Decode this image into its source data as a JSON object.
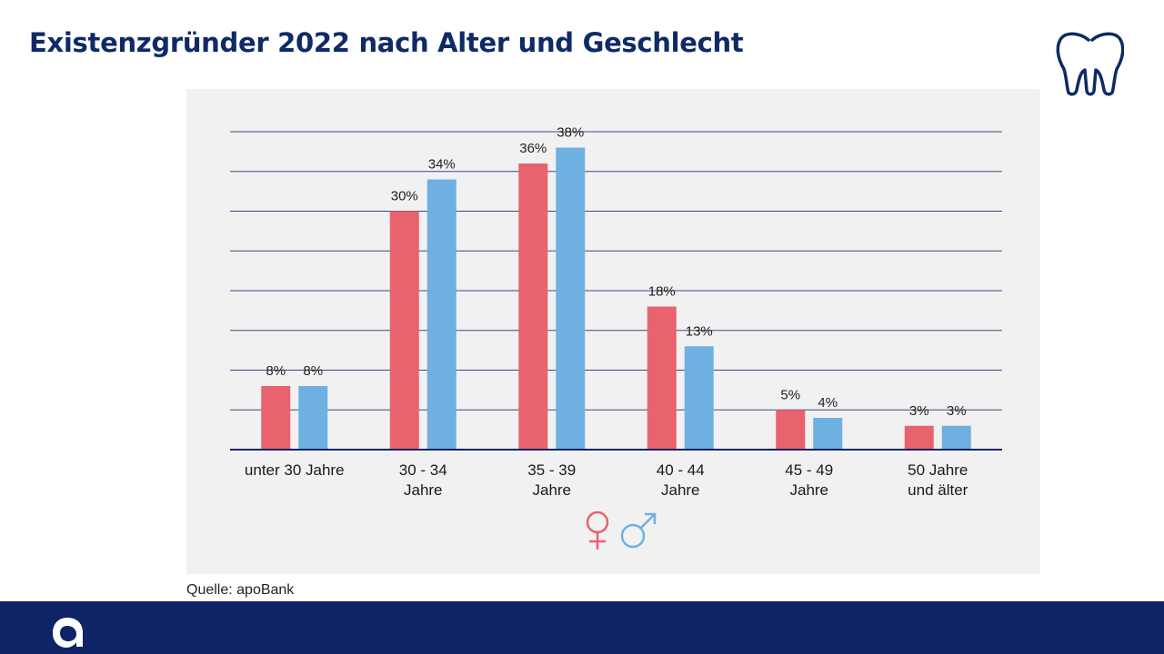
{
  "page": {
    "title": "Existenzgründer 2022 nach Alter und Geschlecht",
    "source": "Quelle: apoBank",
    "icons": {
      "top_right": "tooth-icon",
      "footer": "apobank-logo-icon"
    }
  },
  "colors": {
    "title": "#0f2a66",
    "female": "#e8636e",
    "male": "#6fb0e3",
    "gridline": "#3a4a7e",
    "axis": "#0f2466",
    "panel": "#f1f1f1",
    "footer": "#0f2466"
  },
  "chart_data": {
    "type": "bar",
    "title": "Existenzgründer 2022 nach Alter und Geschlecht",
    "categories": [
      [
        "unter 30 Jahre"
      ],
      [
        "30 - 34",
        "Jahre"
      ],
      [
        "35 - 39",
        "Jahre"
      ],
      [
        "40 - 44",
        "Jahre"
      ],
      [
        "45 - 49",
        "Jahre"
      ],
      [
        "50 Jahre",
        "und älter"
      ]
    ],
    "series": [
      {
        "name": "female",
        "symbol": "♀",
        "color": "#e8636e",
        "values": [
          8,
          30,
          36,
          18,
          5,
          3
        ]
      },
      {
        "name": "male",
        "symbol": "♂",
        "color": "#6fb0e3",
        "values": [
          8,
          34,
          38,
          13,
          4,
          3
        ]
      }
    ],
    "value_suffix": "%",
    "xlabel": "",
    "ylabel": "",
    "ylim": [
      0,
      40
    ],
    "gridlines": [
      5,
      10,
      15,
      20,
      25,
      30,
      35,
      40
    ],
    "legend": "bottom-center"
  }
}
